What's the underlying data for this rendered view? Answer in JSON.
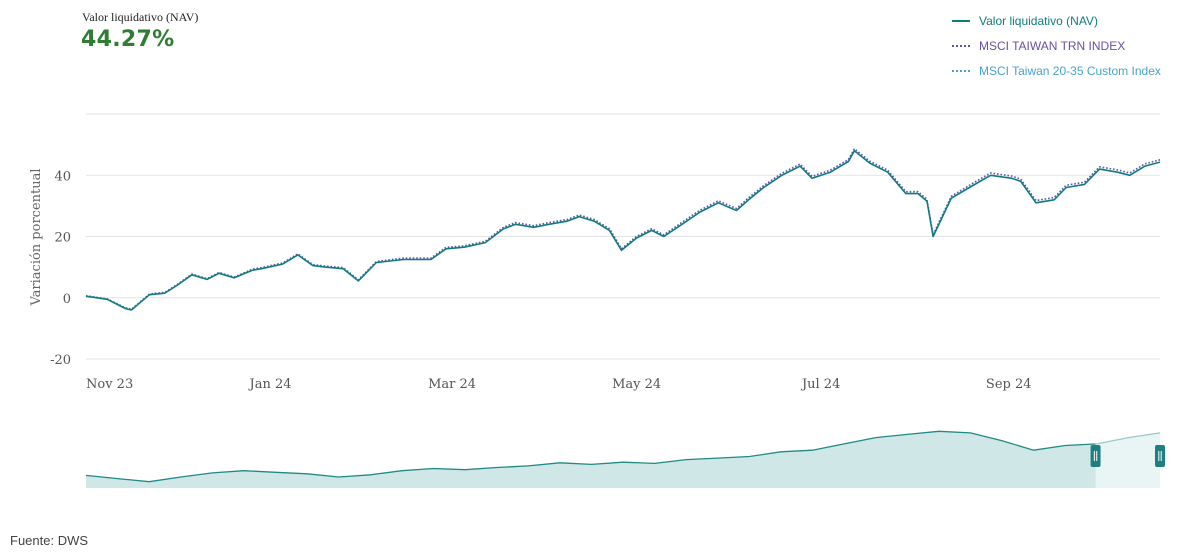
{
  "header": {
    "label": "Valor liquidativo (NAV)",
    "value": "44.27%"
  },
  "legend": [
    {
      "label": "Valor liquidativo (NAV)",
      "color": "#0f7b80",
      "style": "solid"
    },
    {
      "label": "MSCI TAIWAN TRN INDEX",
      "color": "#6a4fa3",
      "style": "dotted"
    },
    {
      "label": "MSCI Taiwan 20-35 Custom Index",
      "color": "#4aa3c9",
      "style": "dotted"
    }
  ],
  "footer": "Fuente: DWS",
  "chart_data": {
    "type": "line",
    "ylabel": "Variación porcentual",
    "ylim": [
      -20,
      60
    ],
    "yticks": [
      -20,
      0,
      20,
      40
    ],
    "xlim": [
      "2023-11-01",
      "2024-10-21"
    ],
    "xticks": [
      {
        "label": "Nov 23",
        "date": "2023-11-01"
      },
      {
        "label": "Jan 24",
        "date": "2024-01-01"
      },
      {
        "label": "Mar 24",
        "date": "2024-03-01"
      },
      {
        "label": "May 24",
        "date": "2024-05-01"
      },
      {
        "label": "Jul 24",
        "date": "2024-07-01"
      },
      {
        "label": "Sep 24",
        "date": "2024-09-01"
      }
    ],
    "grid": true,
    "legend_position": "top-right",
    "x": [
      "2023-11-01",
      "2023-11-08",
      "2023-11-14",
      "2023-11-16",
      "2023-11-22",
      "2023-11-27",
      "2023-12-01",
      "2023-12-06",
      "2023-12-11",
      "2023-12-15",
      "2023-12-20",
      "2023-12-26",
      "2023-12-29",
      "2024-01-05",
      "2024-01-10",
      "2024-01-15",
      "2024-01-19",
      "2024-01-25",
      "2024-01-30",
      "2024-02-05",
      "2024-02-14",
      "2024-02-19",
      "2024-02-23",
      "2024-02-28",
      "2024-03-05",
      "2024-03-12",
      "2024-03-18",
      "2024-03-22",
      "2024-03-28",
      "2024-04-02",
      "2024-04-08",
      "2024-04-12",
      "2024-04-17",
      "2024-04-22",
      "2024-04-26",
      "2024-05-01",
      "2024-05-06",
      "2024-05-10",
      "2024-05-16",
      "2024-05-22",
      "2024-05-28",
      "2024-06-03",
      "2024-06-07",
      "2024-06-12",
      "2024-06-18",
      "2024-06-24",
      "2024-06-28",
      "2024-07-04",
      "2024-07-10",
      "2024-07-12",
      "2024-07-17",
      "2024-07-23",
      "2024-07-29",
      "2024-08-02",
      "2024-08-05",
      "2024-08-07",
      "2024-08-13",
      "2024-08-19",
      "2024-08-26",
      "2024-09-02",
      "2024-09-05",
      "2024-09-10",
      "2024-09-16",
      "2024-09-20",
      "2024-09-26",
      "2024-10-01",
      "2024-10-07",
      "2024-10-11",
      "2024-10-16",
      "2024-10-21"
    ],
    "series": [
      {
        "name": "Valor liquidativo (NAV)",
        "values": [
          0.5,
          -0.5,
          -3.5,
          -4,
          1,
          1.5,
          4,
          7.5,
          6,
          8,
          6.5,
          9,
          9.5,
          11,
          14,
          10.5,
          10,
          9.5,
          5.5,
          11.5,
          12.5,
          12.5,
          12.5,
          16,
          16.5,
          18,
          22.5,
          24,
          23,
          24,
          25,
          26.5,
          25,
          22,
          15.5,
          19.5,
          22,
          20,
          24,
          28,
          31,
          28.5,
          32,
          36,
          40,
          43,
          39,
          41,
          44.5,
          48,
          44,
          41,
          34,
          34,
          31.5,
          20,
          32.5,
          36,
          40,
          39,
          38,
          31,
          32,
          36,
          37,
          42,
          41,
          40,
          43,
          44.3
        ]
      },
      {
        "name": "MSCI TAIWAN TRN INDEX",
        "values": [
          0.6,
          -0.4,
          -3.3,
          -3.8,
          1.2,
          1.7,
          4.2,
          7.7,
          6.2,
          8.2,
          6.7,
          9.3,
          9.8,
          11.3,
          14.3,
          10.8,
          10.3,
          9.8,
          5.8,
          11.8,
          12.9,
          12.9,
          12.9,
          16.4,
          16.9,
          18.4,
          23,
          24.5,
          23.5,
          24.5,
          25.5,
          27,
          25.5,
          22.5,
          16,
          20,
          22.5,
          20.5,
          24.6,
          28.6,
          31.6,
          29.1,
          32.6,
          36.6,
          40.6,
          43.6,
          39.6,
          41.6,
          45.1,
          48.6,
          44.6,
          41.6,
          34.6,
          34.6,
          32.1,
          20.6,
          33.1,
          36.7,
          40.7,
          39.7,
          38.7,
          31.7,
          32.7,
          36.7,
          37.7,
          42.7,
          41.7,
          40.7,
          43.7,
          45
        ]
      },
      {
        "name": "MSCI Taiwan 20-35 Custom Index",
        "values": [
          0.7,
          -0.3,
          -3.2,
          -3.7,
          1.3,
          1.8,
          4.3,
          7.8,
          6.3,
          8.3,
          6.8,
          9.4,
          9.9,
          11.4,
          14.4,
          10.9,
          10.4,
          9.9,
          5.9,
          11.9,
          13,
          13,
          13,
          16.5,
          17,
          18.5,
          23.1,
          24.6,
          23.6,
          24.6,
          25.6,
          27.1,
          25.6,
          22.6,
          16.1,
          20.1,
          22.6,
          20.6,
          24.7,
          28.7,
          31.7,
          29.2,
          32.7,
          36.7,
          40.7,
          43.7,
          39.7,
          41.7,
          45.2,
          48.7,
          44.7,
          41.7,
          34.7,
          34.7,
          32.2,
          20.7,
          33.2,
          36.8,
          40.8,
          39.8,
          38.8,
          31.8,
          32.8,
          36.8,
          37.8,
          42.8,
          41.8,
          40.8,
          43.8,
          45.1
        ]
      }
    ],
    "navigator": {
      "y": [
        0,
        -1,
        -2,
        -0.5,
        0.8,
        1.5,
        1,
        0.5,
        -0.5,
        0.2,
        1.5,
        2.2,
        1.8,
        2.5,
        3,
        4,
        3.5,
        4.2,
        3.8,
        5,
        5.5,
        6,
        7.5,
        8,
        10,
        12,
        13,
        14,
        13.5,
        11,
        8,
        9.5,
        10,
        12,
        13.5
      ],
      "selection": [
        0.94,
        1.0
      ]
    }
  }
}
